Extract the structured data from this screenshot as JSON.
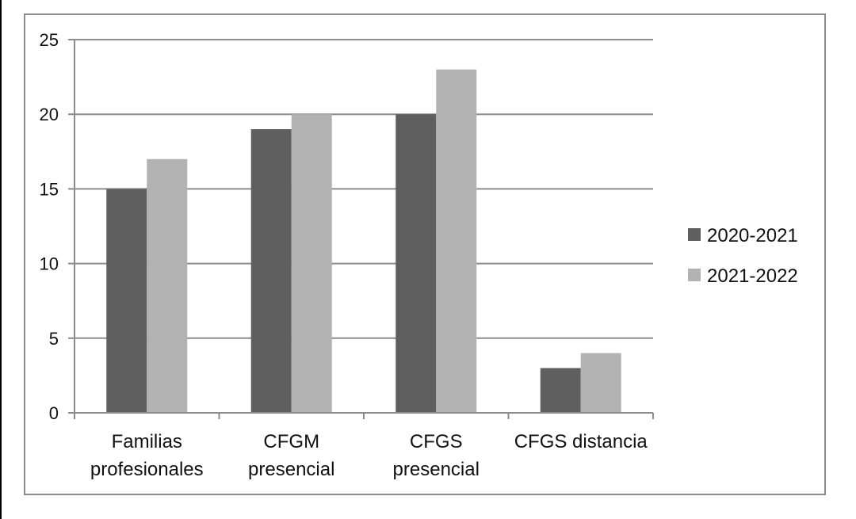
{
  "chart_data": {
    "type": "bar",
    "categories": [
      [
        "Familias",
        "profesionales"
      ],
      [
        "CFGM",
        "presencial"
      ],
      [
        "CFGS",
        "presencial"
      ],
      [
        "CFGS distancia"
      ]
    ],
    "series": [
      {
        "name": "2020-2021",
        "values": [
          15,
          19,
          20,
          3
        ],
        "color": "#5f5f5f"
      },
      {
        "name": "2021-2022",
        "values": [
          17,
          20,
          23,
          4
        ],
        "color": "#b2b2b2"
      }
    ],
    "ylim": [
      0,
      25
    ],
    "yticks": [
      0,
      5,
      10,
      15,
      20,
      25
    ],
    "grid": true,
    "legend": "right"
  }
}
